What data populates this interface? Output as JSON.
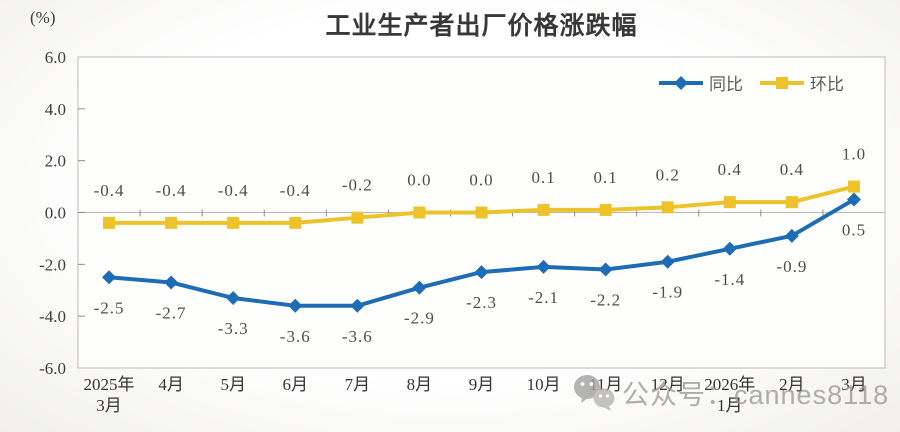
{
  "page": {
    "watermark_text": "公众号：cannes8118"
  },
  "chart_data": {
    "type": "line",
    "title": "工业生产者出厂价格涨跌幅",
    "unit": "(%)",
    "categories": [
      "2025年\n3月",
      "4月",
      "5月",
      "6月",
      "7月",
      "8月",
      "9月",
      "10月",
      "11月",
      "12月",
      "2026年\n1月",
      "2月",
      "3月"
    ],
    "series": [
      {
        "name": "同比",
        "color": "#1e6cb5",
        "marker": "diamond",
        "label_position": "below",
        "values": [
          -2.5,
          -2.7,
          -3.3,
          -3.6,
          -3.6,
          -2.9,
          -2.3,
          -2.1,
          -2.2,
          -1.9,
          -1.4,
          -0.9,
          0.5
        ]
      },
      {
        "name": "环比",
        "color": "#eec329",
        "marker": "square",
        "label_position": "above",
        "values": [
          -0.4,
          -0.4,
          -0.4,
          -0.4,
          -0.2,
          0.0,
          0.0,
          0.1,
          0.1,
          0.2,
          0.4,
          0.4,
          1.0
        ]
      }
    ],
    "ylim": [
      -6,
      6
    ],
    "ytick_step": 2,
    "ytick_labels": [
      "6.0",
      "4.0",
      "2.0",
      "0.0",
      "-2.0",
      "-4.0",
      "-6.0"
    ],
    "legend_position": "top-right-inside",
    "grid": false,
    "axis_color": "#bdbab6",
    "tick_color": "#8b8b8b",
    "label_color": "#4d4d4d",
    "axis_text_color": "#3d3d3d",
    "plot_bg": "#fefefd"
  }
}
